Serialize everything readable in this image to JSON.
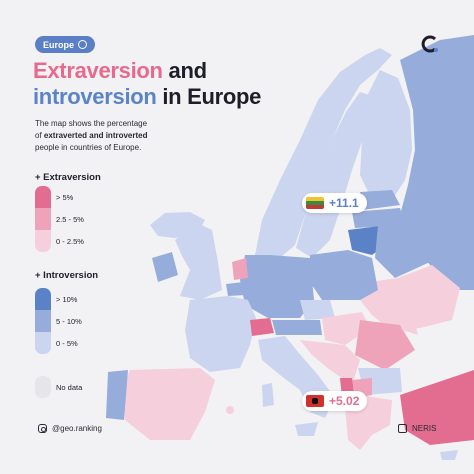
{
  "region_tag": "Europe",
  "title": {
    "part1": "Extraversion",
    "part2": " and",
    "part3": "introversion",
    "part4": " in Europe"
  },
  "description": {
    "line1": "The map shows the percentage",
    "line2a": "of ",
    "line2b": "extraverted and introverted",
    "line3": "people in countries of Europe."
  },
  "legend": {
    "extraversion_title": "+ Extraversion",
    "extraversion": [
      {
        "label": "> 5%",
        "color": "#e36d90"
      },
      {
        "label": "2.5 - 5%",
        "color": "#efa3bb"
      },
      {
        "label": "0 - 2.5%",
        "color": "#f6cfdc"
      }
    ],
    "introversion_title": "+ Introversion",
    "introversion": [
      {
        "label": "> 10%",
        "color": "#5b82c6"
      },
      {
        "label": "5 - 10%",
        "color": "#96acdb"
      },
      {
        "label": "0 - 5%",
        "color": "#cbd5ef"
      }
    ],
    "no_data": {
      "label": "No data",
      "color": "#ececf0"
    }
  },
  "callouts": [
    {
      "country": "Lithuania",
      "value": "+11.1",
      "color": "#5b82c6"
    },
    {
      "country": "Albania",
      "value": "+5.02",
      "color": "#e36d90"
    }
  ],
  "footer": {
    "handle": "@geo.ranking",
    "brand": "NERIS"
  },
  "colors": {
    "sea": "#f2f2f4",
    "no_data": "#ececf0"
  }
}
